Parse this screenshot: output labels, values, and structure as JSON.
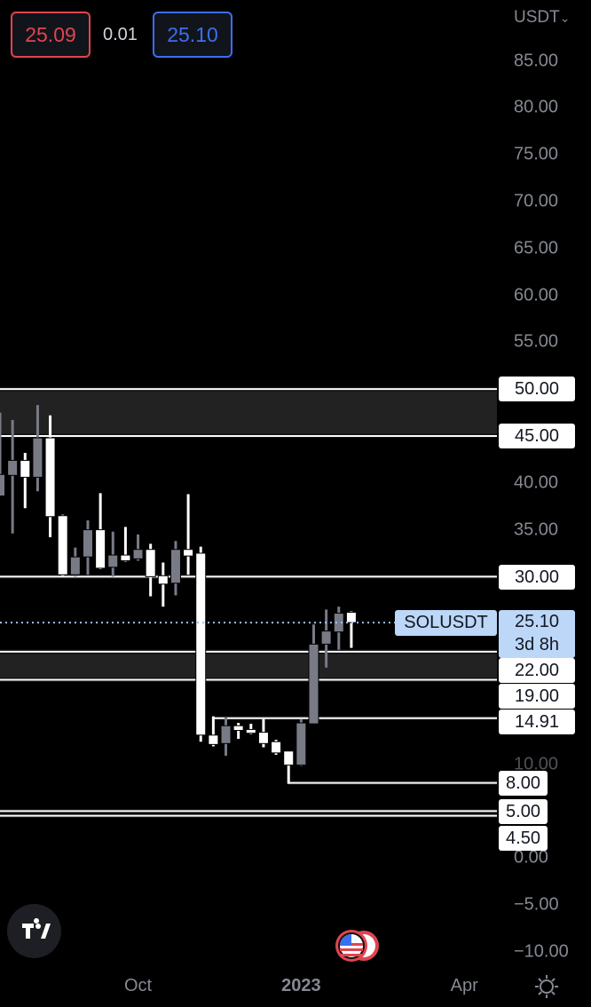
{
  "header": {
    "bid": "25.09",
    "spread": "0.01",
    "ask": "25.10",
    "bid_color": "#e0454f",
    "ask_color": "#3a6ff0",
    "currency": "USDT"
  },
  "symbol": "SOLUSDT",
  "countdown": "3d 8h",
  "current_price_label": "25.10",
  "icons": {
    "logo": "tradingview-logo-icon",
    "event": "us-flag-event-icon",
    "settings": "sun-settings-icon",
    "currency_dropdown": "chevron-down-icon"
  },
  "chart_data": {
    "type": "candlestick",
    "interval": "weekly",
    "symbol": "SOLUSDT",
    "up_color": "#787b86",
    "down_color": "#ffffff",
    "ylim": [
      -15.9,
      91.5
    ],
    "y_ticks": [
      "85.00",
      "80.00",
      "75.00",
      "70.00",
      "65.00",
      "60.00",
      "55.00",
      "40.00",
      "35.00",
      "10.00",
      "0.00",
      "−5.00",
      "−10.00"
    ],
    "y_tick_values": [
      85,
      80,
      75,
      70,
      65,
      60,
      55,
      40,
      35,
      10,
      0,
      -5,
      -10
    ],
    "x_ticks": [
      {
        "label": "Oct",
        "date": "2022-10-03"
      },
      {
        "label": "2023",
        "date": "2023-01-02",
        "bold": true
      },
      {
        "label": "Apr",
        "date": "2023-04-03"
      }
    ],
    "candles": [
      {
        "date": "2022-07-18",
        "o": 38.6,
        "h": 47.5,
        "l": 38.6,
        "c": 40.9
      },
      {
        "date": "2022-07-25",
        "o": 40.8,
        "h": 46.7,
        "l": 34.6,
        "c": 42.4
      },
      {
        "date": "2022-08-01",
        "o": 42.4,
        "h": 43.2,
        "l": 37.3,
        "c": 40.6
      },
      {
        "date": "2022-08-08",
        "o": 40.6,
        "h": 48.3,
        "l": 39.1,
        "c": 44.8
      },
      {
        "date": "2022-08-15",
        "o": 44.8,
        "h": 47.2,
        "l": 34.2,
        "c": 36.4
      },
      {
        "date": "2022-08-22",
        "o": 36.5,
        "h": 36.6,
        "l": 30.0,
        "c": 30.2
      },
      {
        "date": "2022-08-29",
        "o": 30.2,
        "h": 33.1,
        "l": 30.0,
        "c": 32.1
      },
      {
        "date": "2022-09-05",
        "o": 32.1,
        "h": 36.0,
        "l": 30.2,
        "c": 35.0
      },
      {
        "date": "2022-09-12",
        "o": 35.0,
        "h": 38.9,
        "l": 30.8,
        "c": 30.9
      },
      {
        "date": "2022-09-19",
        "o": 31.0,
        "h": 34.8,
        "l": 30.0,
        "c": 32.3
      },
      {
        "date": "2022-09-26",
        "o": 32.3,
        "h": 35.3,
        "l": 31.6,
        "c": 31.7
      },
      {
        "date": "2022-10-03",
        "o": 31.9,
        "h": 34.5,
        "l": 31.7,
        "c": 32.9
      },
      {
        "date": "2022-10-10",
        "o": 32.9,
        "h": 33.5,
        "l": 27.9,
        "c": 30.0
      },
      {
        "date": "2022-10-17",
        "o": 30.1,
        "h": 31.5,
        "l": 26.8,
        "c": 29.2
      },
      {
        "date": "2022-10-24",
        "o": 29.3,
        "h": 33.8,
        "l": 28.0,
        "c": 32.9
      },
      {
        "date": "2022-10-31",
        "o": 32.9,
        "h": 38.8,
        "l": 30.2,
        "c": 32.2
      },
      {
        "date": "2022-11-07",
        "o": 32.5,
        "h": 33.2,
        "l": 12.4,
        "c": 13.1
      },
      {
        "date": "2022-11-14",
        "o": 13.1,
        "h": 15.1,
        "l": 11.9,
        "c": 12.1
      },
      {
        "date": "2022-11-21",
        "o": 12.2,
        "h": 15.0,
        "l": 10.9,
        "c": 14.1
      },
      {
        "date": "2022-11-28",
        "o": 14.1,
        "h": 14.4,
        "l": 12.7,
        "c": 13.6
      },
      {
        "date": "2022-12-05",
        "o": 13.7,
        "h": 14.3,
        "l": 13.2,
        "c": 13.3
      },
      {
        "date": "2022-12-12",
        "o": 13.4,
        "h": 14.8,
        "l": 11.8,
        "c": 12.2
      },
      {
        "date": "2022-12-19",
        "o": 12.4,
        "h": 12.6,
        "l": 11.0,
        "c": 11.2
      },
      {
        "date": "2022-12-26",
        "o": 11.4,
        "h": 11.4,
        "l": 7.9,
        "c": 9.9
      },
      {
        "date": "2023-01-02",
        "o": 9.9,
        "h": 14.8,
        "l": 9.8,
        "c": 14.4
      },
      {
        "date": "2023-01-09",
        "o": 14.3,
        "h": 24.9,
        "l": 14.3,
        "c": 22.8
      },
      {
        "date": "2023-01-16",
        "o": 22.8,
        "h": 26.5,
        "l": 20.3,
        "c": 24.2
      },
      {
        "date": "2023-01-23",
        "o": 24.1,
        "h": 26.8,
        "l": 22.2,
        "c": 26.1
      },
      {
        "date": "2023-01-30",
        "o": 26.2,
        "h": 26.3,
        "l": 22.4,
        "c": 25.1
      }
    ],
    "zones": [
      {
        "from": 45,
        "to": 50,
        "color": "#222222"
      },
      {
        "from": 19,
        "to": 22,
        "color": "#222222"
      }
    ],
    "levels": [
      {
        "price": 50,
        "label": "50.00"
      },
      {
        "price": 45,
        "label": "45.00"
      },
      {
        "price": 30,
        "label": "30.00"
      },
      {
        "price": 22,
        "label": "22.00"
      },
      {
        "price": 19,
        "label": "19.00"
      },
      {
        "price": 14.91,
        "label": "14.91",
        "start": "2022-11-14"
      },
      {
        "price": 8,
        "label": "8.00",
        "start": "2022-12-26"
      },
      {
        "price": 5,
        "label": "5.00"
      },
      {
        "price": 4.5,
        "label": "4.50"
      }
    ],
    "current_price": 25.1
  }
}
